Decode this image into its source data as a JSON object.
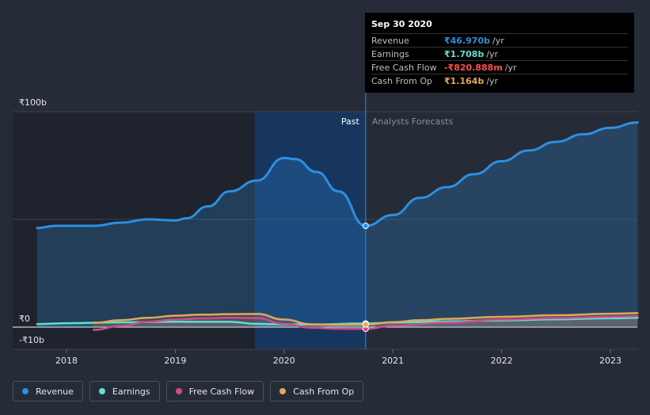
{
  "chart_data": {
    "type": "area",
    "currency": "₹",
    "y_labels": {
      "top": "₹100b",
      "zero": "₹0",
      "bottom": "-₹10b"
    },
    "ylim": [
      -10,
      100
    ],
    "xlim": [
      2017.73,
      2023.25
    ],
    "x_ticks": [
      "2018",
      "2019",
      "2020",
      "2021",
      "2022",
      "2023"
    ],
    "x_tick_values": [
      2018,
      2019,
      2020,
      2021,
      2022,
      2023
    ],
    "past_label": "Past",
    "forecast_label": "Analysts Forecasts",
    "highlight_range": [
      2019.73,
      2020.75
    ],
    "divider_x": 2020.75,
    "series": [
      {
        "name": "Revenue",
        "color": "#2d8fe0",
        "points": [
          [
            2017.73,
            46
          ],
          [
            2017.9,
            47
          ],
          [
            2018.0,
            47
          ],
          [
            2018.25,
            47
          ],
          [
            2018.5,
            48.5
          ],
          [
            2018.75,
            50
          ],
          [
            2019.0,
            49.5
          ],
          [
            2019.1,
            50.5
          ],
          [
            2019.3,
            56
          ],
          [
            2019.5,
            63
          ],
          [
            2019.75,
            68
          ],
          [
            2020.0,
            78.5
          ],
          [
            2020.1,
            78
          ],
          [
            2020.3,
            72
          ],
          [
            2020.5,
            63
          ],
          [
            2020.75,
            47
          ],
          [
            2021.0,
            52
          ],
          [
            2021.25,
            60
          ],
          [
            2021.5,
            65
          ],
          [
            2021.75,
            71
          ],
          [
            2022.0,
            77
          ],
          [
            2022.25,
            82
          ],
          [
            2022.5,
            86
          ],
          [
            2022.75,
            89.5
          ],
          [
            2023.0,
            92.5
          ],
          [
            2023.25,
            95
          ]
        ]
      },
      {
        "name": "Earnings",
        "color": "#5ee0d0",
        "points": [
          [
            2017.73,
            1.4
          ],
          [
            2018.0,
            1.8
          ],
          [
            2018.5,
            2.2
          ],
          [
            2019.0,
            2.5
          ],
          [
            2019.5,
            2.5
          ],
          [
            2019.75,
            1.5
          ],
          [
            2020.0,
            1.3
          ],
          [
            2020.3,
            1.2
          ],
          [
            2020.75,
            1.7
          ],
          [
            2021.0,
            2.1
          ],
          [
            2021.5,
            2.6
          ],
          [
            2022.0,
            3.1
          ],
          [
            2022.5,
            3.6
          ],
          [
            2023.0,
            4.1
          ],
          [
            2023.25,
            4.3
          ]
        ]
      },
      {
        "name": "Free Cash Flow",
        "color": "#d24a8a",
        "points": [
          [
            2018.25,
            -1.3
          ],
          [
            2018.5,
            0.5
          ],
          [
            2018.75,
            2.5
          ],
          [
            2019.0,
            3.5
          ],
          [
            2019.25,
            4.0
          ],
          [
            2019.5,
            4.3
          ],
          [
            2019.75,
            4.2
          ],
          [
            2020.0,
            1.5
          ],
          [
            2020.25,
            -0.3
          ],
          [
            2020.5,
            -0.8
          ],
          [
            2020.75,
            -0.82
          ],
          [
            2021.0,
            0.6
          ],
          [
            2021.5,
            2.0
          ],
          [
            2022.0,
            3.5
          ],
          [
            2022.5,
            4.2
          ],
          [
            2023.0,
            4.8
          ],
          [
            2023.25,
            5.1
          ]
        ]
      },
      {
        "name": "Cash From Op",
        "color": "#e3a857",
        "points": [
          [
            2018.25,
            2.0
          ],
          [
            2018.5,
            3.2
          ],
          [
            2018.75,
            4.3
          ],
          [
            2019.0,
            5.3
          ],
          [
            2019.25,
            5.8
          ],
          [
            2019.5,
            6.0
          ],
          [
            2019.75,
            6.1
          ],
          [
            2020.0,
            3.5
          ],
          [
            2020.25,
            1.3
          ],
          [
            2020.5,
            1.1
          ],
          [
            2020.75,
            1.16
          ],
          [
            2021.0,
            2.3
          ],
          [
            2021.25,
            3.2
          ],
          [
            2021.5,
            3.8
          ],
          [
            2022.0,
            4.8
          ],
          [
            2022.5,
            5.5
          ],
          [
            2023.0,
            6.2
          ],
          [
            2023.25,
            6.5
          ]
        ]
      }
    ],
    "tooltip": {
      "date": "Sep 30 2020",
      "rows": [
        {
          "name": "Revenue",
          "value": "₹46.970b",
          "unit": "/yr",
          "color": "#2d8fe0"
        },
        {
          "name": "Earnings",
          "value": "₹1.708b",
          "unit": "/yr",
          "color": "#5ee0d0"
        },
        {
          "name": "Free Cash Flow",
          "value": "-₹820.888m",
          "unit": "/yr",
          "color": "#ff4d4d"
        },
        {
          "name": "Cash From Op",
          "value": "₹1.164b",
          "unit": "/yr",
          "color": "#e3a857"
        }
      ]
    }
  },
  "legend": [
    {
      "label": "Revenue",
      "color": "#2d8fe0"
    },
    {
      "label": "Earnings",
      "color": "#5ee0d0"
    },
    {
      "label": "Free Cash Flow",
      "color": "#d24a8a"
    },
    {
      "label": "Cash From Op",
      "color": "#e3a857"
    }
  ]
}
